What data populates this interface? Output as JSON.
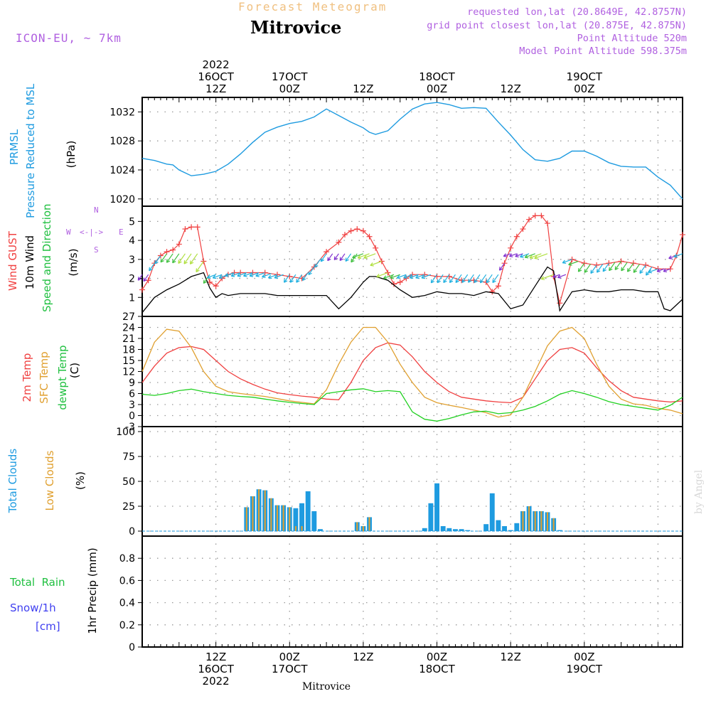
{
  "header": {
    "subtitle": "Forecast Meteogram",
    "title": "Mitrovice",
    "model": "ICON-EU, ~ 7km",
    "requested": "requested lon,lat (20.8649E, 42.8757N)",
    "gridpoint": "grid point closest lon,lat (20.875E, 42.875N)",
    "point_alt": "Point Altitude 520m",
    "model_alt": "Model Point Altitude 598.375m",
    "footer": "Mitrovice",
    "watermark": "by Angel"
  },
  "time_axis": {
    "top_labels": [
      {
        "t": 12,
        "lines": [
          "2022",
          "16OCT",
          "12Z"
        ]
      },
      {
        "t": 24,
        "lines": [
          "17OCT",
          "00Z"
        ]
      },
      {
        "t": 36,
        "lines": [
          "12Z"
        ]
      },
      {
        "t": 48,
        "lines": [
          "18OCT",
          "00Z"
        ]
      },
      {
        "t": 60,
        "lines": [
          "12Z"
        ]
      },
      {
        "t": 72,
        "lines": [
          "19OCT",
          "00Z"
        ]
      }
    ],
    "bottom_labels": [
      {
        "t": 12,
        "lines": [
          "12Z",
          "16OCT",
          "2022"
        ]
      },
      {
        "t": 24,
        "lines": [
          "00Z",
          "17OCT"
        ]
      },
      {
        "t": 36,
        "lines": [
          "12Z"
        ]
      },
      {
        "t": 48,
        "lines": [
          "00Z",
          "18OCT"
        ]
      },
      {
        "t": 60,
        "lines": [
          "12Z"
        ]
      },
      {
        "t": 72,
        "lines": [
          "00Z",
          "19OCT"
        ]
      }
    ]
  },
  "panel_labels": {
    "pressure": {
      "l1": "PRMSL",
      "l2": "Pressure Reduced to MSL",
      "unit": "(hPa)"
    },
    "wind": {
      "gust": "Wind GUST",
      "wind": "10m Wind",
      "speed": "Speed and Direction",
      "unit": "(m/s)",
      "compass": {
        "n": "N",
        "s": "S",
        "w": "W",
        "e": "E",
        "arrow": "<-|->"
      }
    },
    "temp": {
      "t2m": "2m Temp",
      "sfc": "SFC Temp",
      "dew": "dewpt Temp",
      "unit": "(C)"
    },
    "clouds": {
      "total": "Total Clouds",
      "low": "Low Clouds",
      "unit": "(%)"
    },
    "precip": {
      "rain": "Total  Rain",
      "snow": "Snow/1h",
      "snow_unit": "[cm]",
      "ylabel": "1hr Precip (mm)"
    }
  },
  "colors": {
    "pressure": "#1e9be0",
    "gust": "#f04040",
    "wind": "#000000",
    "temp2m": "#f04040",
    "sfc": "#e0a030",
    "dew": "#20d020",
    "total_cloud": "#1e9be0",
    "low_cloud": "#e0a030",
    "rain": "#20c040",
    "snow": "#4040f0",
    "compass": "#b060e0",
    "header_sub": "#f0c080",
    "header_info": "#b060e0"
  },
  "chart_data": [
    {
      "type": "line",
      "name": "pressure",
      "ylim": [
        1019,
        1034
      ],
      "yticks": [
        1020,
        1024,
        1028,
        1032
      ],
      "series": [
        {
          "name": "PRMSL",
          "x": [
            0,
            2,
            4,
            5,
            6,
            8,
            10,
            12,
            14,
            16,
            18,
            20,
            22,
            24,
            26,
            28,
            30,
            32,
            34,
            36,
            37,
            38,
            40,
            42,
            44,
            46,
            48,
            50,
            52,
            54,
            56,
            58,
            60,
            62,
            64,
            66,
            68,
            70,
            72,
            74,
            76,
            78,
            80,
            82,
            84,
            86,
            88
          ],
          "y": [
            1025.6,
            1025.3,
            1024.8,
            1024.7,
            1024.0,
            1023.2,
            1023.4,
            1023.8,
            1024.8,
            1026.2,
            1027.8,
            1029.2,
            1029.9,
            1030.4,
            1030.7,
            1031.3,
            1032.4,
            1031.5,
            1030.6,
            1029.8,
            1029.2,
            1028.9,
            1029.4,
            1031.0,
            1032.4,
            1033.1,
            1033.3,
            1033.0,
            1032.5,
            1032.6,
            1032.5,
            1030.6,
            1028.8,
            1026.8,
            1025.4,
            1025.2,
            1025.6,
            1026.6,
            1026.6,
            1025.9,
            1025.0,
            1024.5,
            1024.4,
            1024.4,
            1023.0,
            1021.9,
            1020.0
          ]
        }
      ]
    },
    {
      "type": "line",
      "name": "wind",
      "ylim": [
        0,
        5.8
      ],
      "yticks": [
        1,
        2,
        3,
        4,
        5
      ],
      "series": [
        {
          "name": "Wind GUST",
          "x": [
            0,
            1,
            2,
            3,
            4,
            5,
            6,
            7,
            8,
            9,
            10,
            11,
            12,
            13,
            14,
            15,
            16,
            18,
            20,
            22,
            24,
            26,
            28,
            30,
            32,
            33,
            34,
            35,
            36,
            37,
            38,
            39,
            40,
            41,
            42,
            43,
            44,
            46,
            48,
            50,
            52,
            54,
            56,
            57,
            58,
            59,
            60,
            61,
            62,
            63,
            64,
            65,
            66,
            67,
            68,
            70,
            72,
            74,
            76,
            78,
            80,
            82,
            84,
            86,
            87,
            88
          ],
          "y": [
            1.4,
            1.9,
            2.8,
            3.2,
            3.4,
            3.5,
            3.8,
            4.6,
            4.7,
            4.7,
            2.9,
            1.8,
            1.6,
            2.0,
            2.2,
            2.3,
            2.3,
            2.3,
            2.3,
            2.2,
            2.1,
            2.0,
            2.6,
            3.4,
            3.9,
            4.3,
            4.5,
            4.6,
            4.5,
            4.2,
            3.6,
            2.9,
            2.3,
            1.7,
            1.8,
            2.0,
            2.2,
            2.2,
            2.1,
            2.1,
            1.9,
            1.9,
            1.8,
            1.3,
            1.6,
            2.8,
            3.6,
            4.2,
            4.6,
            5.1,
            5.3,
            5.3,
            4.9,
            2.1,
            0.7,
            3.0,
            2.8,
            2.7,
            2.8,
            2.9,
            2.8,
            2.7,
            2.5,
            2.5,
            3.2,
            4.3
          ]
        },
        {
          "name": "10m Wind",
          "x": [
            0,
            2,
            4,
            6,
            8,
            10,
            11,
            12,
            13,
            14,
            16,
            18,
            20,
            22,
            24,
            26,
            28,
            30,
            32,
            34,
            36,
            37,
            38,
            40,
            42,
            44,
            46,
            48,
            50,
            52,
            54,
            56,
            58,
            60,
            62,
            64,
            66,
            67,
            68,
            70,
            72,
            74,
            76,
            78,
            80,
            82,
            84,
            85,
            86,
            88
          ],
          "y": [
            0.2,
            1.0,
            1.4,
            1.7,
            2.1,
            2.3,
            1.5,
            1.0,
            1.2,
            1.1,
            1.2,
            1.2,
            1.2,
            1.1,
            1.1,
            1.1,
            1.1,
            1.1,
            0.4,
            1.0,
            1.8,
            2.1,
            2.1,
            1.9,
            1.4,
            1.0,
            1.1,
            1.3,
            1.2,
            1.2,
            1.1,
            1.3,
            1.2,
            0.4,
            0.6,
            1.6,
            2.6,
            2.4,
            0.3,
            1.3,
            1.4,
            1.3,
            1.3,
            1.4,
            1.4,
            1.3,
            1.3,
            0.4,
            0.3,
            0.9
          ]
        }
      ],
      "arrows": {
        "x_start": 0,
        "x_end": 88,
        "count": 88
      }
    },
    {
      "type": "line",
      "name": "temperature",
      "ylim": [
        -3,
        27
      ],
      "yticks": [
        -3,
        0,
        3,
        6,
        9,
        12,
        15,
        18,
        21,
        24,
        27
      ],
      "series": [
        {
          "name": "2m Temp",
          "x": [
            0,
            2,
            4,
            6,
            8,
            10,
            12,
            14,
            16,
            18,
            20,
            22,
            24,
            26,
            28,
            30,
            32,
            34,
            36,
            38,
            40,
            42,
            44,
            46,
            48,
            50,
            52,
            54,
            56,
            58,
            60,
            62,
            64,
            66,
            68,
            70,
            72,
            74,
            76,
            78,
            80,
            82,
            84,
            86,
            88
          ],
          "y": [
            9,
            13.5,
            17,
            18.5,
            18.8,
            18,
            15,
            12,
            10,
            8.5,
            7.2,
            6.2,
            5.7,
            5.3,
            5.0,
            4.5,
            4.3,
            9,
            15,
            18.5,
            19.8,
            19.2,
            16,
            12,
            9,
            6.5,
            5,
            4.5,
            4,
            3.7,
            3.5,
            5,
            10,
            15,
            18,
            18.5,
            17,
            13,
            9.5,
            6.8,
            5,
            4.5,
            4,
            3.7,
            4
          ]
        },
        {
          "name": "SFC Temp",
          "x": [
            0,
            2,
            4,
            6,
            8,
            10,
            12,
            14,
            16,
            18,
            20,
            22,
            24,
            26,
            28,
            30,
            32,
            34,
            36,
            38,
            40,
            42,
            44,
            46,
            48,
            50,
            52,
            54,
            56,
            58,
            60,
            62,
            64,
            66,
            68,
            70,
            72,
            74,
            76,
            78,
            80,
            82,
            84,
            86,
            88
          ],
          "y": [
            12,
            20,
            23.5,
            23,
            18.5,
            12,
            8,
            6.5,
            6.0,
            5.6,
            5.2,
            4.6,
            4.0,
            3.6,
            3.2,
            7,
            14,
            20,
            24,
            24,
            20,
            14,
            9,
            5,
            3.5,
            2.8,
            2.2,
            1.5,
            0.8,
            -0.4,
            0.2,
            5,
            12,
            19,
            23,
            24,
            21,
            14,
            8,
            4.5,
            3.2,
            2.8,
            2.0,
            1.5,
            0.5
          ]
        },
        {
          "name": "dewpt Temp",
          "x": [
            0,
            2,
            4,
            6,
            8,
            10,
            12,
            14,
            16,
            18,
            20,
            22,
            24,
            26,
            28,
            30,
            32,
            34,
            36,
            38,
            40,
            42,
            44,
            46,
            48,
            50,
            52,
            54,
            56,
            58,
            60,
            62,
            64,
            66,
            68,
            70,
            72,
            74,
            76,
            78,
            80,
            82,
            84,
            86,
            88
          ],
          "y": [
            5.8,
            5.5,
            6.0,
            6.8,
            7.2,
            6.5,
            6.0,
            5.5,
            5.2,
            5.0,
            4.5,
            4.0,
            3.6,
            3.3,
            3.0,
            6,
            6.5,
            7,
            7.3,
            6.5,
            6.8,
            6.5,
            1,
            -1,
            -1.5,
            -0.8,
            0.2,
            1,
            1.2,
            0.5,
            0.8,
            1.5,
            2.5,
            4,
            5.8,
            6.8,
            6,
            5,
            3.8,
            3.0,
            2.5,
            2.0,
            1.5,
            2.8,
            5
          ]
        }
      ]
    },
    {
      "type": "bar",
      "name": "clouds",
      "ylim": [
        -5,
        105
      ],
      "yticks": [
        0,
        25,
        50,
        75,
        100
      ],
      "series": [
        {
          "name": "Total Clouds",
          "x": [
            17,
            18,
            19,
            20,
            21,
            22,
            23,
            24,
            25,
            26,
            27,
            28,
            29,
            35,
            36,
            37,
            46,
            47,
            48,
            49,
            50,
            51,
            52,
            53,
            56,
            57,
            58,
            59,
            60,
            61,
            62,
            63,
            64,
            65,
            66,
            67,
            68
          ],
          "y": [
            24,
            35,
            42,
            41,
            33,
            26,
            26,
            24,
            23,
            28,
            40,
            20,
            2,
            9,
            5,
            14,
            3,
            28,
            48,
            5,
            3,
            2,
            2,
            1,
            7,
            38,
            11,
            5,
            1,
            8,
            20,
            25,
            20,
            20,
            19,
            13,
            1
          ]
        },
        {
          "name": "Low Clouds",
          "x": [
            17,
            18,
            19,
            20,
            21,
            22,
            23,
            24,
            25,
            26,
            35,
            36,
            37,
            62,
            63,
            64,
            65,
            66,
            67
          ],
          "y": [
            24,
            35,
            42,
            41,
            33,
            26,
            26,
            24,
            5,
            5,
            9,
            5,
            14,
            20,
            25,
            20,
            20,
            19,
            13
          ]
        }
      ]
    },
    {
      "type": "bar",
      "name": "precipitation",
      "ylim": [
        0,
        1.0
      ],
      "yticks": [
        0,
        0.2,
        0.4,
        0.6,
        0.8
      ],
      "series": [
        {
          "name": "Total Rain",
          "x": [],
          "y": []
        },
        {
          "name": "Snow/1h",
          "x": [],
          "y": []
        }
      ]
    }
  ]
}
